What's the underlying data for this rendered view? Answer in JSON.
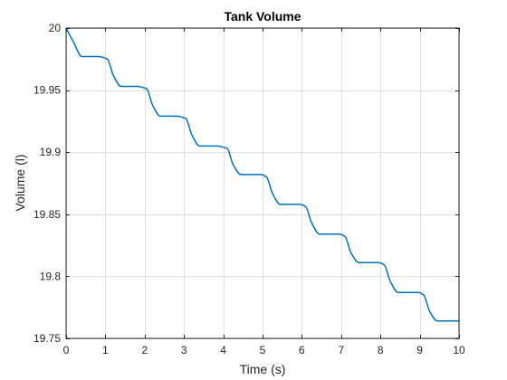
{
  "chart_data": {
    "type": "line",
    "title": "Tank Volume",
    "xlabel": "Time (s)",
    "ylabel": "Volume (l)",
    "xlim": [
      0,
      10
    ],
    "ylim": [
      19.75,
      20
    ],
    "xticks": [
      0,
      1,
      2,
      3,
      4,
      5,
      6,
      7,
      8,
      9,
      10
    ],
    "xtick_labels": [
      "0",
      "1",
      "2",
      "3",
      "4",
      "5",
      "6",
      "7",
      "8",
      "9",
      "10"
    ],
    "yticks": [
      19.75,
      19.8,
      19.85,
      19.9,
      19.95,
      20
    ],
    "ytick_labels": [
      "19.75",
      "19.8",
      "19.85",
      "19.9",
      "19.95",
      "20"
    ],
    "grid": true,
    "box": true,
    "series": [
      {
        "color": "#0072BD",
        "x": [
          0,
          0.2,
          0.4,
          0.6,
          0.8,
          1.05,
          1.2,
          1.4,
          1.6,
          1.8,
          2.05,
          2.2,
          2.4,
          2.6,
          2.8,
          3.05,
          3.2,
          3.4,
          3.6,
          3.8,
          4.1,
          4.25,
          4.45,
          4.7,
          4.95,
          5.1,
          5.25,
          5.45,
          5.7,
          5.95,
          6.1,
          6.25,
          6.45,
          6.7,
          6.95,
          7.1,
          7.25,
          7.45,
          7.7,
          7.95,
          8.1,
          8.25,
          8.45,
          8.7,
          8.95,
          9.1,
          9.25,
          9.45,
          9.7,
          10
        ],
        "y": [
          20,
          19.988,
          19.977,
          19.977,
          19.977,
          19.975,
          19.962,
          19.953,
          19.953,
          19.953,
          19.951,
          19.938,
          19.929,
          19.929,
          19.929,
          19.927,
          19.914,
          19.905,
          19.905,
          19.905,
          19.903,
          19.89,
          19.882,
          19.882,
          19.882,
          19.88,
          19.867,
          19.858,
          19.858,
          19.858,
          19.856,
          19.843,
          19.834,
          19.834,
          19.834,
          19.832,
          19.819,
          19.811,
          19.811,
          19.811,
          19.809,
          19.796,
          19.787,
          19.787,
          19.787,
          19.785,
          19.772,
          19.764,
          19.764,
          19.764
        ]
      }
    ]
  }
}
